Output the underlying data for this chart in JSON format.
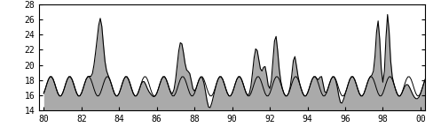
{
  "xlim": [
    1979.75,
    2000.25
  ],
  "ylim": [
    14,
    28
  ],
  "xticks": [
    1980,
    1982,
    1984,
    1986,
    1988,
    1990,
    1992,
    1994,
    1996,
    1998,
    2000
  ],
  "yticks": [
    14,
    16,
    18,
    20,
    22,
    24,
    26,
    28
  ],
  "xlabel_vals": [
    "80",
    "82",
    "84",
    "86",
    "88",
    "90",
    "92",
    "94",
    "96",
    "98",
    "00"
  ],
  "ylabel_vals": [
    "14",
    "16",
    "18",
    "20",
    "22",
    "24",
    "26",
    "28"
  ],
  "fill_color": "#aaaaaa",
  "line_color": "#000000",
  "background_color": "#ffffff",
  "fill_baseline": 14,
  "clim_base": 17.2,
  "clim_amp": 1.3,
  "sst_base": 17.2
}
